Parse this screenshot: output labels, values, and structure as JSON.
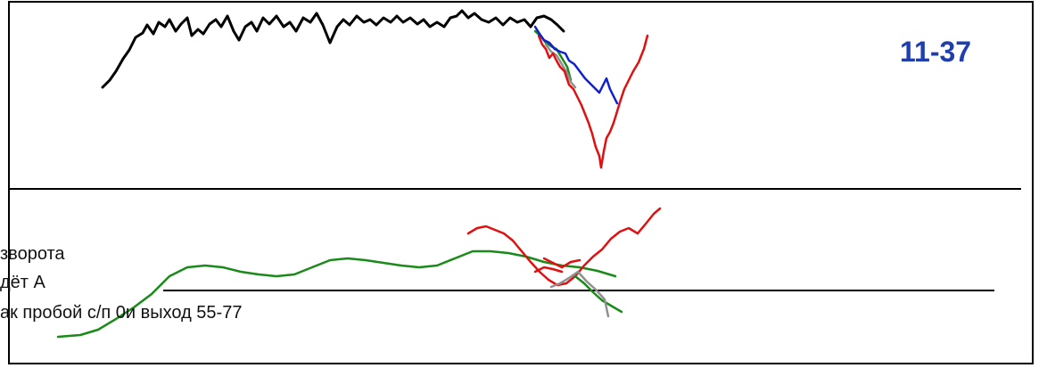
{
  "chart_data": {
    "type": "line",
    "label": "11-37",
    "notes": [
      "зворота",
      "дёт А",
      "ак пробой с/п 0и выход 55-77"
    ],
    "colors": {
      "frame": "#000000",
      "black": "#000000",
      "red": "#e01010",
      "blue": "#1020d0",
      "green": "#1a8a1a",
      "gray": "#909090",
      "label": "#1f3fb0"
    },
    "upper_panel": {
      "series": [
        {
          "color": "black",
          "points": [
            [
              115,
              98
            ],
            [
              123,
              90
            ],
            [
              130,
              80
            ],
            [
              138,
              66
            ],
            [
              145,
              56
            ],
            [
              152,
              42
            ],
            [
              160,
              37
            ],
            [
              165,
              28
            ],
            [
              172,
              38
            ],
            [
              178,
              25
            ],
            [
              185,
              30
            ],
            [
              190,
              22
            ],
            [
              197,
              35
            ],
            [
              203,
              27
            ],
            [
              210,
              20
            ],
            [
              215,
              40
            ],
            [
              222,
              33
            ],
            [
              228,
              38
            ],
            [
              235,
              27
            ],
            [
              242,
              22
            ],
            [
              248,
              30
            ],
            [
              255,
              18
            ],
            [
              262,
              35
            ],
            [
              268,
              45
            ],
            [
              275,
              30
            ],
            [
              282,
              25
            ],
            [
              288,
              35
            ],
            [
              295,
              20
            ],
            [
              302,
              27
            ],
            [
              310,
              18
            ],
            [
              318,
              30
            ],
            [
              325,
              25
            ],
            [
              332,
              35
            ],
            [
              340,
              20
            ],
            [
              348,
              25
            ],
            [
              355,
              15
            ],
            [
              362,
              28
            ],
            [
              370,
              48
            ],
            [
              378,
              30
            ],
            [
              385,
              22
            ],
            [
              392,
              28
            ],
            [
              400,
              18
            ],
            [
              408,
              25
            ],
            [
              415,
              22
            ],
            [
              422,
              28
            ],
            [
              430,
              20
            ],
            [
              438,
              25
            ],
            [
              445,
              18
            ],
            [
              452,
              25
            ],
            [
              460,
              20
            ],
            [
              468,
              27
            ],
            [
              475,
              22
            ],
            [
              482,
              30
            ],
            [
              490,
              25
            ],
            [
              498,
              30
            ],
            [
              505,
              20
            ],
            [
              512,
              18
            ],
            [
              518,
              12
            ],
            [
              525,
              20
            ],
            [
              532,
              15
            ],
            [
              540,
              22
            ],
            [
              548,
              25
            ],
            [
              556,
              20
            ],
            [
              564,
              28
            ],
            [
              572,
              20
            ],
            [
              580,
              25
            ],
            [
              588,
              22
            ],
            [
              595,
              30
            ],
            [
              602,
              20
            ],
            [
              610,
              18
            ],
            [
              618,
              22
            ],
            [
              625,
              28
            ],
            [
              632,
              35
            ]
          ]
        },
        {
          "color": "green",
          "points": [
            [
              600,
              35
            ],
            [
              606,
              40
            ],
            [
              612,
              48
            ],
            [
              618,
              52
            ],
            [
              624,
              55
            ],
            [
              630,
              65
            ],
            [
              636,
              75
            ],
            [
              640,
              90
            ]
          ]
        },
        {
          "color": "gray",
          "points": [
            [
              612,
              50
            ],
            [
              618,
              58
            ],
            [
              624,
              62
            ],
            [
              630,
              72
            ],
            [
              636,
              82
            ],
            [
              640,
              92
            ],
            [
              645,
              98
            ]
          ]
        },
        {
          "color": "red",
          "points": [
            [
              604,
              40
            ],
            [
              608,
              50
            ],
            [
              612,
              55
            ],
            [
              616,
              65
            ],
            [
              620,
              60
            ],
            [
              624,
              68
            ],
            [
              628,
              75
            ],
            [
              633,
              80
            ],
            [
              638,
              95
            ],
            [
              643,
              100
            ],
            [
              648,
              110
            ],
            [
              652,
              118
            ],
            [
              656,
              128
            ],
            [
              660,
              138
            ],
            [
              664,
              150
            ],
            [
              668,
              165
            ],
            [
              672,
              175
            ],
            [
              674,
              188
            ],
            [
              677,
              170
            ],
            [
              680,
              155
            ],
            [
              684,
              148
            ],
            [
              688,
              138
            ],
            [
              692,
              125
            ],
            [
              696,
              112
            ],
            [
              700,
              100
            ],
            [
              705,
              90
            ],
            [
              710,
              80
            ],
            [
              716,
              70
            ],
            [
              722,
              55
            ],
            [
              726,
              40
            ]
          ]
        },
        {
          "color": "blue",
          "points": [
            [
              600,
              30
            ],
            [
              605,
              38
            ],
            [
              610,
              45
            ],
            [
              616,
              48
            ],
            [
              622,
              55
            ],
            [
              628,
              58
            ],
            [
              634,
              60
            ],
            [
              638,
              68
            ],
            [
              644,
              72
            ],
            [
              650,
              80
            ],
            [
              656,
              88
            ],
            [
              660,
              92
            ],
            [
              664,
              96
            ],
            [
              668,
              100
            ],
            [
              672,
              104
            ],
            [
              676,
              96
            ],
            [
              680,
              88
            ],
            [
              684,
              100
            ],
            [
              688,
              108
            ],
            [
              692,
              116
            ]
          ]
        }
      ]
    },
    "lower_panel": {
      "series": [
        {
          "color": "green",
          "points": [
            [
              65,
              378
            ],
            [
              90,
              376
            ],
            [
              110,
              370
            ],
            [
              130,
              358
            ],
            [
              150,
              345
            ],
            [
              170,
              330
            ],
            [
              190,
              310
            ],
            [
              210,
              300
            ],
            [
              230,
              298
            ],
            [
              250,
              300
            ],
            [
              270,
              305
            ],
            [
              290,
              308
            ],
            [
              310,
              310
            ],
            [
              330,
              308
            ],
            [
              350,
              300
            ],
            [
              370,
              292
            ],
            [
              390,
              290
            ],
            [
              410,
              292
            ],
            [
              430,
              295
            ],
            [
              450,
              298
            ],
            [
              470,
              300
            ],
            [
              490,
              298
            ],
            [
              510,
              290
            ],
            [
              530,
              282
            ],
            [
              550,
              282
            ],
            [
              570,
              284
            ],
            [
              590,
              288
            ],
            [
              610,
              294
            ],
            [
              630,
              298
            ],
            [
              650,
              300
            ],
            [
              670,
              304
            ],
            [
              690,
              310
            ]
          ]
        },
        {
          "color": "red",
          "points": [
            [
              525,
              262
            ],
            [
              535,
              256
            ],
            [
              545,
              254
            ],
            [
              555,
              258
            ],
            [
              565,
              262
            ],
            [
              575,
              270
            ],
            [
              585,
              282
            ],
            [
              595,
              294
            ],
            [
              605,
              305
            ],
            [
              615,
              314
            ],
            [
              625,
              320
            ],
            [
              635,
              318
            ],
            [
              645,
              310
            ],
            [
              655,
              298
            ],
            [
              665,
              288
            ],
            [
              675,
              280
            ],
            [
              685,
              268
            ],
            [
              695,
              260
            ],
            [
              705,
              256
            ],
            [
              715,
              262
            ],
            [
              725,
              250
            ],
            [
              733,
              240
            ],
            [
              740,
              234
            ]
          ]
        },
        {
          "color": "red",
          "points": [
            [
              600,
              305
            ],
            [
              610,
              300
            ],
            [
              620,
              302
            ],
            [
              630,
              305
            ]
          ]
        },
        {
          "color": "green",
          "points": [
            [
              645,
              310
            ],
            [
              655,
              318
            ],
            [
              665,
              328
            ],
            [
              675,
              337
            ],
            [
              685,
              343
            ],
            [
              697,
              350
            ]
          ]
        },
        {
          "color": "gray",
          "points": [
            [
              618,
              322
            ],
            [
              628,
              318
            ],
            [
              638,
              312
            ],
            [
              648,
              305
            ],
            [
              658,
              316
            ],
            [
              668,
              325
            ],
            [
              678,
              336
            ],
            [
              682,
              355
            ]
          ]
        },
        {
          "color": "red",
          "points": [
            [
              610,
              290
            ],
            [
              620,
              295
            ],
            [
              630,
              300
            ],
            [
              640,
              294
            ],
            [
              650,
              292
            ]
          ]
        }
      ]
    }
  }
}
